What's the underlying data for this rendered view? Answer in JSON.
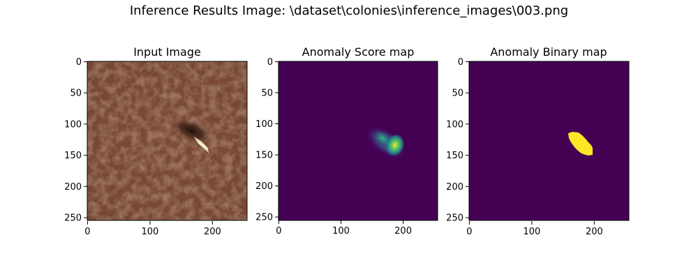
{
  "figure": {
    "title": "Inference Results Image: \\dataset\\colonies\\inference_images\\003.png"
  },
  "panels": [
    {
      "id": "input",
      "title": "Input Image",
      "xticks": [
        "0",
        "100",
        "200"
      ],
      "yticks": [
        "0",
        "50",
        "100",
        "150",
        "200",
        "250"
      ]
    },
    {
      "id": "score",
      "title": "Anomaly Score map",
      "xticks": [
        "0",
        "100",
        "200"
      ],
      "yticks": [
        "0",
        "50",
        "100",
        "150",
        "200",
        "250"
      ]
    },
    {
      "id": "binary",
      "title": "Anomaly Binary map",
      "xticks": [
        "0",
        "100",
        "200"
      ],
      "yticks": [
        "0",
        "50",
        "100",
        "150",
        "200",
        "250"
      ]
    }
  ],
  "colors": {
    "leather_base": "#7a4a34",
    "viridis_low": "#440154",
    "viridis_mid": "#21918c",
    "viridis_high": "#fde725",
    "binary_on": "#fde725",
    "binary_off": "#440154"
  }
}
